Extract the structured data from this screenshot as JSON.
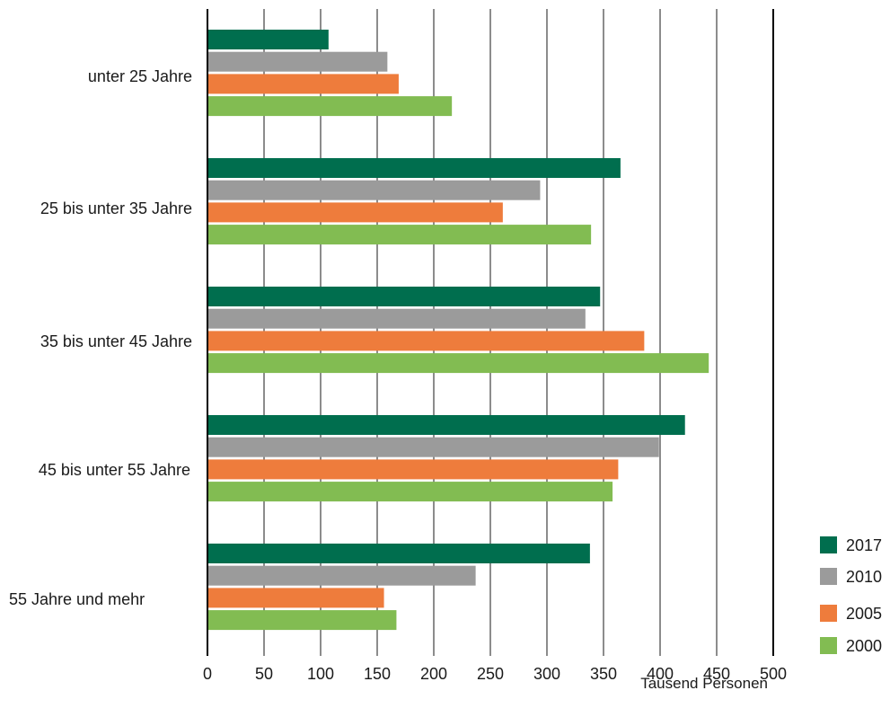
{
  "chart_data": {
    "type": "bar",
    "orientation": "horizontal",
    "categories": [
      "unter 25 Jahre",
      "25 bis unter 35 Jahre",
      "35 bis unter 45 Jahre",
      "45 bis unter 55 Jahre",
      "55 Jahre und mehr"
    ],
    "series": [
      {
        "name": "2017",
        "color": "#006e4e",
        "values": [
          107,
          365,
          347,
          422,
          338
        ]
      },
      {
        "name": "2010",
        "color": "#9b9b9b",
        "values": [
          159,
          294,
          334,
          399,
          237
        ]
      },
      {
        "name": "2005",
        "color": "#ee7c3c",
        "values": [
          169,
          261,
          386,
          363,
          156
        ]
      },
      {
        "name": "2000",
        "color": "#82bc52",
        "values": [
          216,
          339,
          443,
          358,
          167
        ]
      }
    ],
    "xlim": [
      0,
      500
    ],
    "xticks": [
      0,
      50,
      100,
      150,
      200,
      250,
      300,
      350,
      400,
      450,
      500
    ],
    "xlabel": "Tausend Personen",
    "title": "",
    "grid": true,
    "legend_position": "bottom-right"
  }
}
